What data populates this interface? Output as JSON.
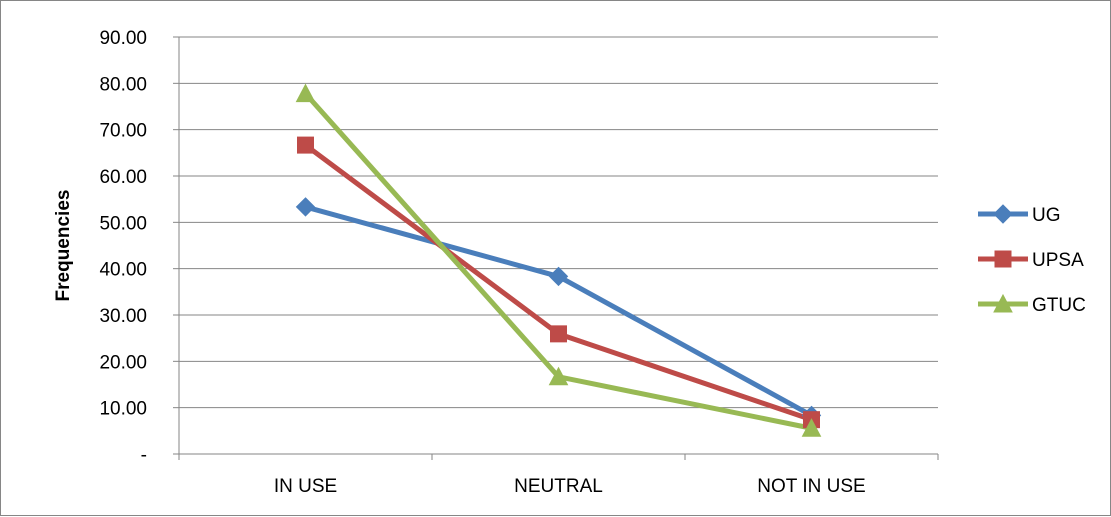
{
  "chart_data": {
    "type": "line",
    "title": "",
    "xlabel": "",
    "ylabel": "Frequencies",
    "categories": [
      "IN USE",
      "NEUTRAL",
      "NOT IN USE"
    ],
    "ylim": [
      0,
      90
    ],
    "yticks": [
      0,
      10,
      20,
      30,
      40,
      50,
      60,
      70,
      80,
      90
    ],
    "ytick_labels": [
      "-",
      "10.00",
      "20.00",
      "30.00",
      "40.00",
      "50.00",
      "60.00",
      "70.00",
      "80.00",
      "90.00"
    ],
    "grid": true,
    "legend_position": "right",
    "series": [
      {
        "name": "UG",
        "values": [
          53.33,
          38.33,
          8.33
        ],
        "color": "#4a7ebb",
        "marker": "diamond"
      },
      {
        "name": "UPSA",
        "values": [
          66.67,
          25.93,
          7.41
        ],
        "color": "#be4b48",
        "marker": "square"
      },
      {
        "name": "GTUC",
        "values": [
          77.78,
          16.67,
          5.56
        ],
        "color": "#98b954",
        "marker": "triangle"
      }
    ]
  }
}
